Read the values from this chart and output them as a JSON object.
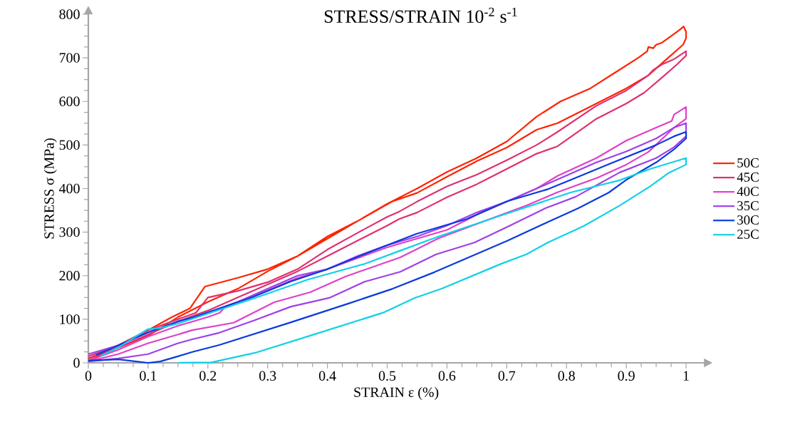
{
  "chart_data": {
    "type": "line",
    "title": "STRESS/STRAIN 10$^{-2}$ s$^{-1}$",
    "xlabel": "STRAIN ε (%)",
    "ylabel": "STRESS σ (MPa)",
    "xlim": [
      0,
      1.03
    ],
    "ylim": [
      0,
      800
    ],
    "xticks": [
      0,
      0.1,
      0.2,
      0.3,
      0.4,
      0.5,
      0.6,
      0.7,
      0.8,
      0.9,
      1
    ],
    "yticks": [
      0,
      100,
      200,
      300,
      400,
      500,
      600,
      700,
      800
    ],
    "grid": false,
    "legend": "right",
    "marker": "none",
    "line_style": "solid",
    "series": [
      {
        "name": "50C",
        "color": "#ff2200",
        "x": [
          0,
          0.05,
          0.1,
          0.14,
          0.17,
          0.195,
          0.25,
          0.3,
          0.35,
          0.4,
          0.45,
          0.5,
          0.55,
          0.6,
          0.65,
          0.7,
          0.75,
          0.79,
          0.84,
          0.88,
          0.92,
          0.935,
          0.937,
          0.945,
          0.95,
          0.96,
          0.975,
          0.99,
          0.996,
          1.0,
          1.0,
          0.995,
          0.97,
          0.937,
          0.9,
          0.85,
          0.785,
          0.75,
          0.7,
          0.65,
          0.6,
          0.55,
          0.508,
          0.45,
          0.4,
          0.35,
          0.3,
          0.25,
          0.2,
          0.15,
          0.1,
          0.05,
          0
        ],
        "values": [
          10,
          40,
          75,
          105,
          125,
          175,
          195,
          215,
          245,
          290,
          325,
          365,
          400,
          438,
          470,
          508,
          565,
          600,
          630,
          665,
          700,
          715,
          725,
          722,
          730,
          735,
          750,
          765,
          772,
          760,
          745,
          730,
          700,
          660,
          630,
          595,
          550,
          535,
          494,
          463,
          427,
          390,
          370,
          325,
          285,
          245,
          210,
          170,
          140,
          105,
          62,
          35,
          5
        ]
      },
      {
        "name": "45C",
        "color": "#e0306e",
        "x": [
          0,
          0.05,
          0.1,
          0.15,
          0.18,
          0.2,
          0.25,
          0.3,
          0.35,
          0.4,
          0.45,
          0.5,
          0.52,
          0.55,
          0.6,
          0.65,
          0.7,
          0.75,
          0.785,
          0.85,
          0.9,
          0.937,
          0.945,
          0.96,
          0.98,
          1.0,
          1.0,
          0.985,
          0.96,
          0.93,
          0.9,
          0.85,
          0.785,
          0.75,
          0.7,
          0.65,
          0.6,
          0.55,
          0.52,
          0.5,
          0.45,
          0.4,
          0.35,
          0.3,
          0.25,
          0.2,
          0.15,
          0.1,
          0.05,
          0
        ],
        "values": [
          15,
          40,
          75,
          100,
          115,
          150,
          165,
          185,
          215,
          260,
          298,
          335,
          347,
          370,
          405,
          432,
          465,
          500,
          530,
          590,
          625,
          660,
          672,
          685,
          697,
          715,
          705,
          685,
          655,
          620,
          595,
          560,
          497,
          480,
          445,
          410,
          380,
          345,
          330,
          315,
          280,
          245,
          210,
          180,
          150,
          120,
          95,
          65,
          35,
          10
        ]
      },
      {
        "name": "40C",
        "color": "#e040c8",
        "x": [
          0,
          0.05,
          0.1,
          0.15,
          0.2,
          0.22,
          0.23,
          0.28,
          0.35,
          0.4,
          0.45,
          0.5,
          0.55,
          0.6,
          0.65,
          0.7,
          0.75,
          0.785,
          0.85,
          0.9,
          0.95,
          0.976,
          0.98,
          1.0,
          1.0,
          0.98,
          0.937,
          0.9,
          0.852,
          0.784,
          0.733,
          0.66,
          0.586,
          0.522,
          0.43,
          0.371,
          0.311,
          0.243,
          0.174,
          0.15,
          0.1,
          0.05,
          0
        ],
        "values": [
          5,
          30,
          60,
          85,
          105,
          115,
          130,
          155,
          195,
          215,
          240,
          265,
          285,
          305,
          340,
          370,
          400,
          429,
          470,
          510,
          540,
          555,
          570,
          587,
          560,
          540,
          484,
          455,
          425,
          391,
          361,
          324,
          286,
          242,
          198,
          162,
          139,
          92,
          75,
          65,
          45,
          20,
          3
        ]
      },
      {
        "name": "35C",
        "color": "#a040e8",
        "x": [
          0,
          0.05,
          0.1,
          0.15,
          0.2,
          0.25,
          0.3,
          0.35,
          0.4,
          0.45,
          0.5,
          0.55,
          0.6,
          0.65,
          0.7,
          0.75,
          0.8,
          0.85,
          0.9,
          0.95,
          0.98,
          1.0,
          1.0,
          0.98,
          0.95,
          0.889,
          0.815,
          0.765,
          0.701,
          0.646,
          0.582,
          0.522,
          0.462,
          0.403,
          0.339,
          0.279,
          0.219,
          0.174,
          0.15,
          0.1,
          0.05,
          0
        ],
        "values": [
          20,
          40,
          70,
          95,
          115,
          140,
          170,
          200,
          215,
          245,
          270,
          290,
          315,
          345,
          370,
          400,
          430,
          460,
          485,
          515,
          540,
          550,
          520,
          495,
          470,
          437,
          381,
          355,
          312,
          276,
          249,
          209,
          186,
          149,
          129,
          98,
          69,
          54,
          45,
          20,
          10,
          3
        ]
      },
      {
        "name": "30C",
        "color": "#0a3ae0",
        "x": [
          0.013,
          0.05,
          0.1,
          0.15,
          0.174,
          0.275,
          0.339,
          0.398,
          0.472,
          0.549,
          0.633,
          0.701,
          0.77,
          0.871,
          0.95,
          0.98,
          1.0,
          1.0,
          0.98,
          0.95,
          0.9,
          0.871,
          0.82,
          0.77,
          0.701,
          0.579,
          0.509,
          0.435,
          0.339,
          0.219,
          0.174,
          0.15,
          0.12,
          0.1,
          0.05,
          0
        ],
        "values": [
          18,
          40,
          70,
          95,
          104,
          151,
          187,
          214,
          255,
          296,
          330,
          371,
          399,
          456,
          500,
          520,
          530,
          515,
          490,
          460,
          420,
          391,
          355,
          324,
          280,
          208,
          170,
          136,
          93,
          41,
          25,
          15,
          3,
          0,
          8,
          5
        ]
      },
      {
        "name": "25C",
        "color": "#10d0e8",
        "x": [
          0.02,
          0.05,
          0.099,
          0.12,
          0.15,
          0.174,
          0.279,
          0.367,
          0.462,
          0.517,
          0.586,
          0.688,
          0.807,
          0.889,
          0.94,
          1.0,
          1.0,
          0.97,
          0.94,
          0.889,
          0.829,
          0.77,
          0.733,
          0.692,
          0.591,
          0.546,
          0.495,
          0.375,
          0.279,
          0.206,
          0.15
        ],
        "values": [
          15,
          35,
          77,
          80,
          90,
          101,
          149,
          191,
          227,
          255,
          290,
          337,
          391,
          419,
          445,
          470,
          455,
          435,
          405,
          361,
          314,
          277,
          249,
          228,
          170,
          149,
          116,
          64,
          23,
          1,
          0
        ]
      }
    ]
  }
}
